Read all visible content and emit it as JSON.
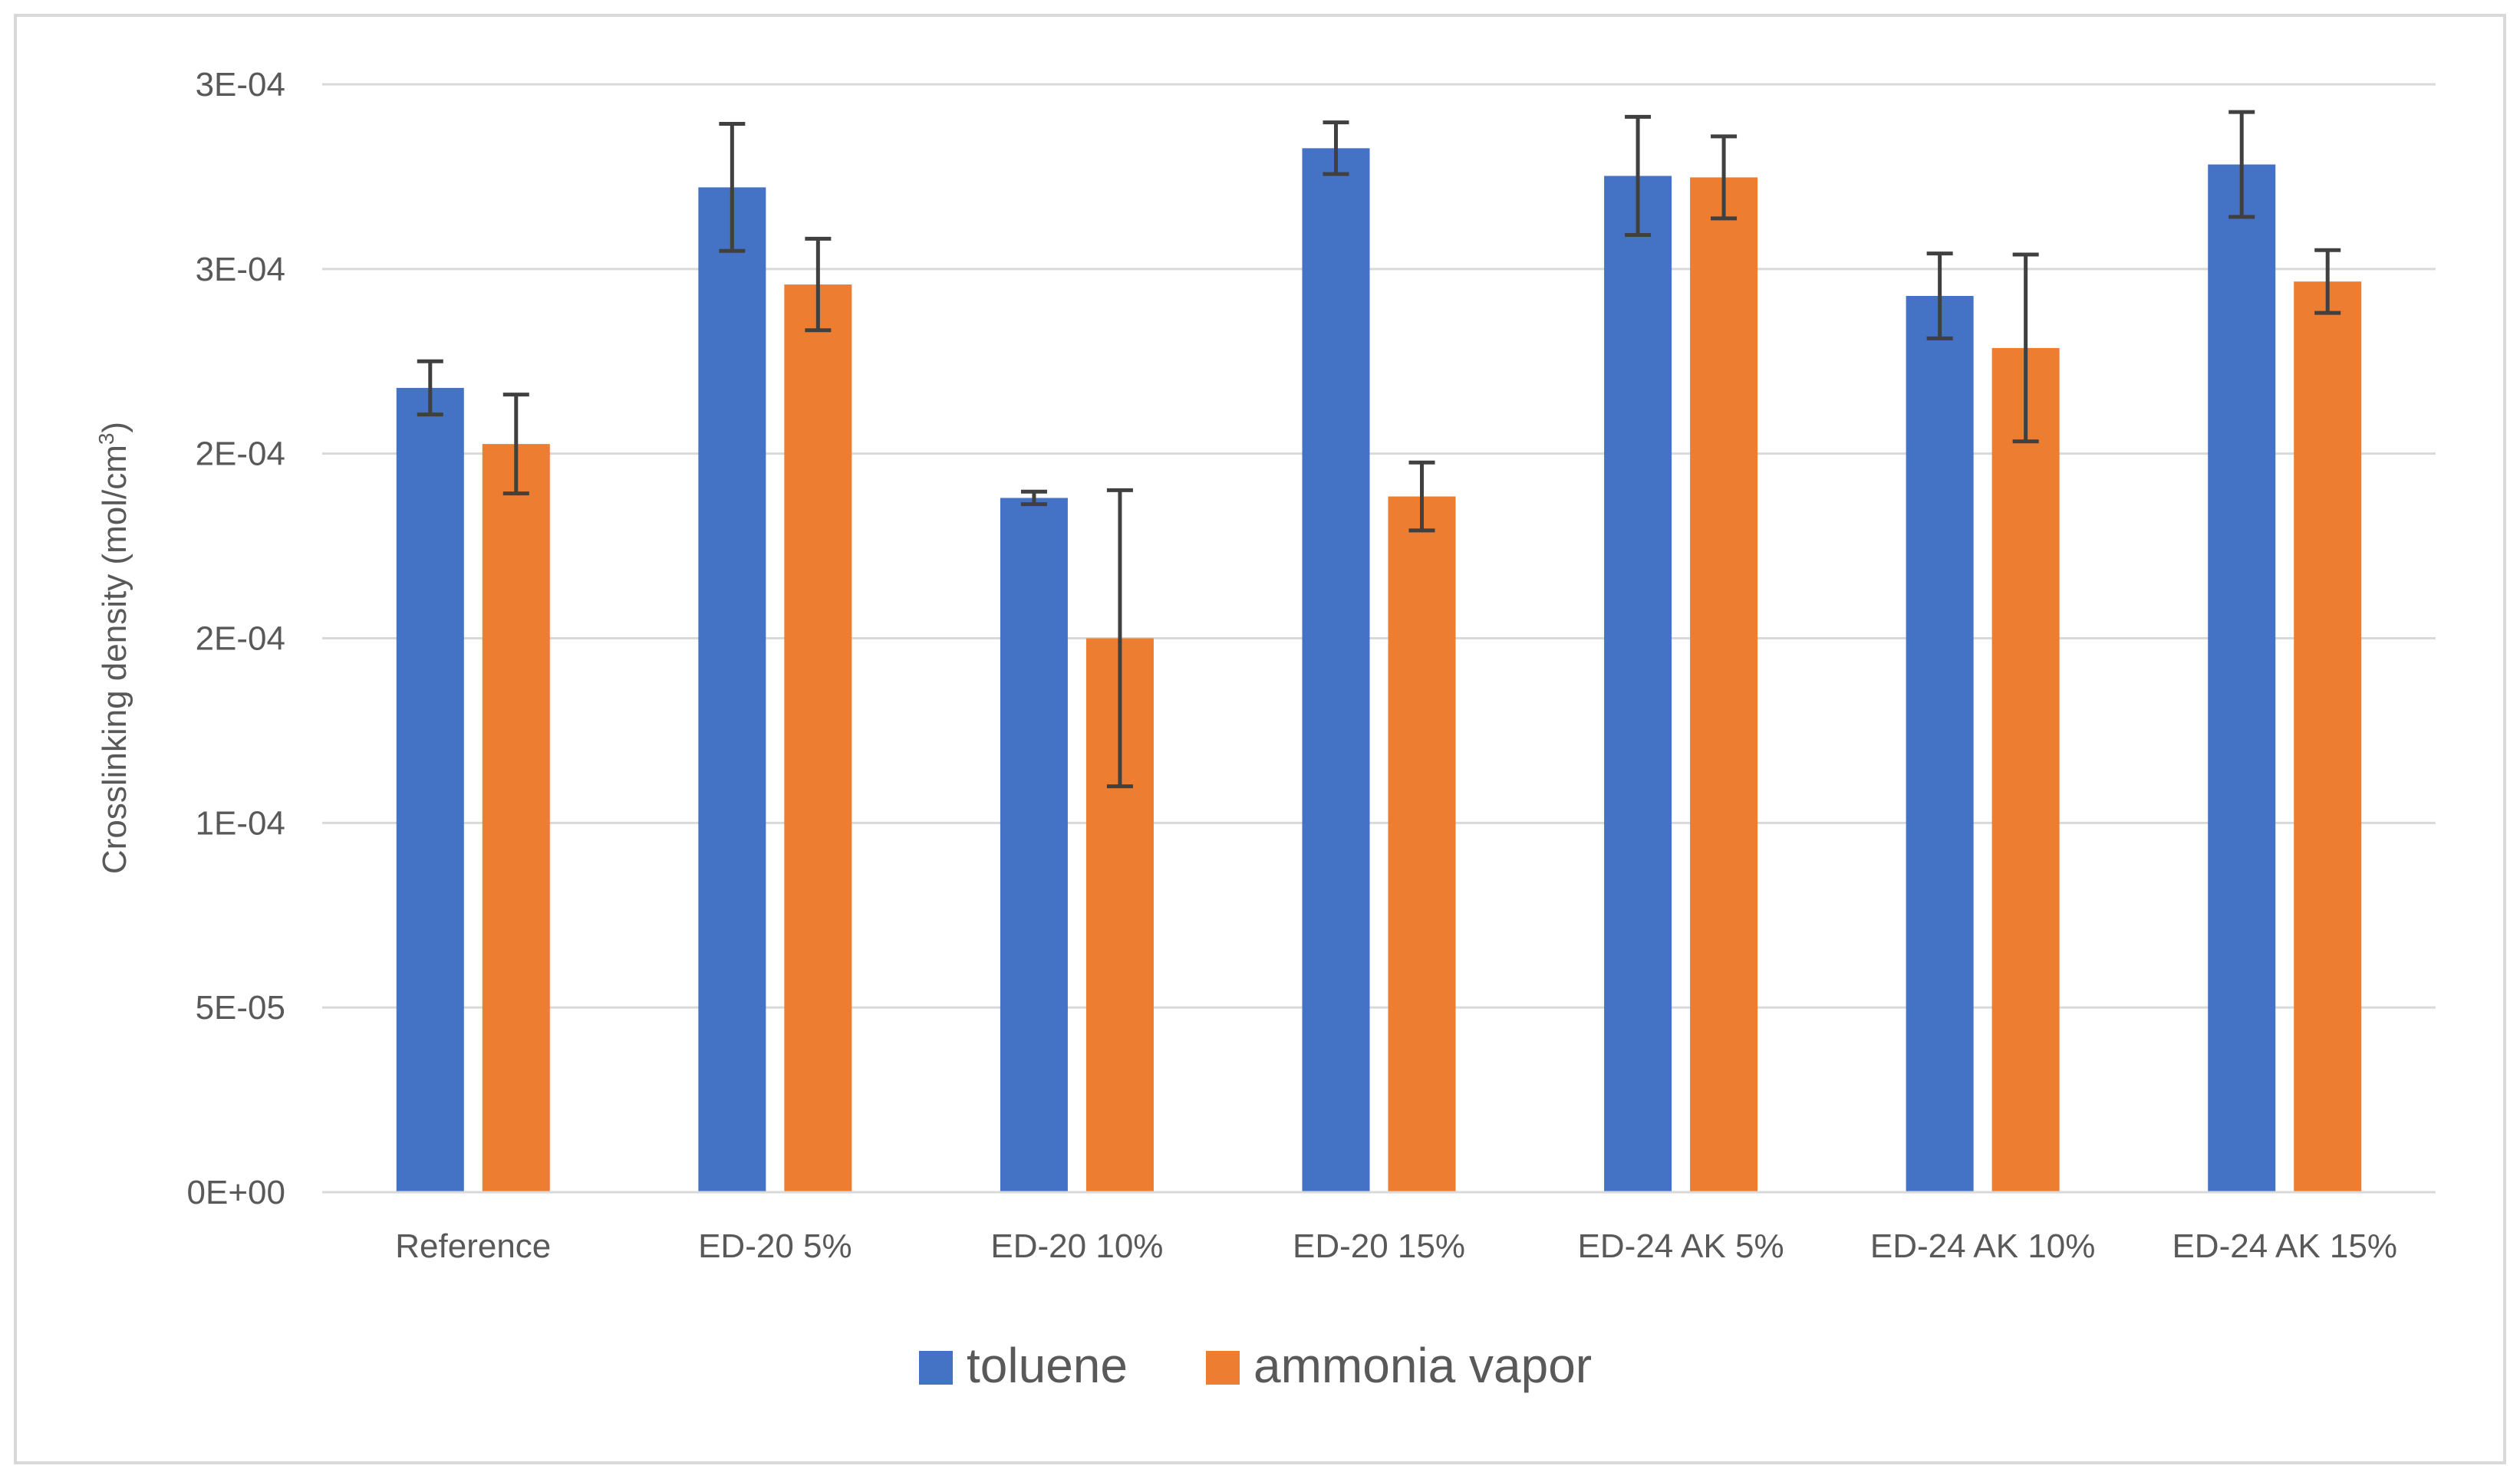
{
  "chart_data": {
    "type": "bar",
    "title": "",
    "xlabel": "",
    "ylabel": "Crosslinking density (mol/cm",
    "ylabel_superscript": "3",
    "ylabel_suffix": ")",
    "ylim": [
      0,
      0.0003
    ],
    "y_ticks": [
      {
        "value": 0,
        "label": "0E+00"
      },
      {
        "value": 5e-05,
        "label": "5E-05"
      },
      {
        "value": 0.0001,
        "label": "1E-04"
      },
      {
        "value": 0.00015,
        "label": "2E-04"
      },
      {
        "value": 0.0002,
        "label": "2E-04"
      },
      {
        "value": 0.00025,
        "label": "3E-04"
      },
      {
        "value": 0.0003,
        "label": "3E-04"
      }
    ],
    "grid": true,
    "legend_position": "bottom-center",
    "categories": [
      "Reference",
      "ED-20 5%",
      "ED-20 10%",
      "ED-20 15%",
      "ED-24 AK 5%",
      "ED-24 AK 10%",
      "ED-24 AK 15%"
    ],
    "series": [
      {
        "name": "toluene",
        "color": "#4472C4",
        "values": [
          0.0002178,
          0.0002721,
          0.000188,
          0.0002827,
          0.0002752,
          0.0002427,
          0.0002783
        ],
        "errors": [
          7.2e-06,
          1.72e-05,
          1.7e-06,
          7e-06,
          1.6e-05,
          1.15e-05,
          1.42e-05
        ]
      },
      {
        "name": "ammonia vapor",
        "color": "#ED7D31",
        "values": [
          0.0002026,
          0.0002458,
          0.00015,
          0.0001884,
          0.0002748,
          0.0002286,
          0.0002466
        ],
        "errors": [
          1.34e-05,
          1.24e-05,
          4.01e-05,
          9.2e-06,
          1.11e-05,
          2.53e-05,
          8.5e-06
        ]
      }
    ]
  }
}
